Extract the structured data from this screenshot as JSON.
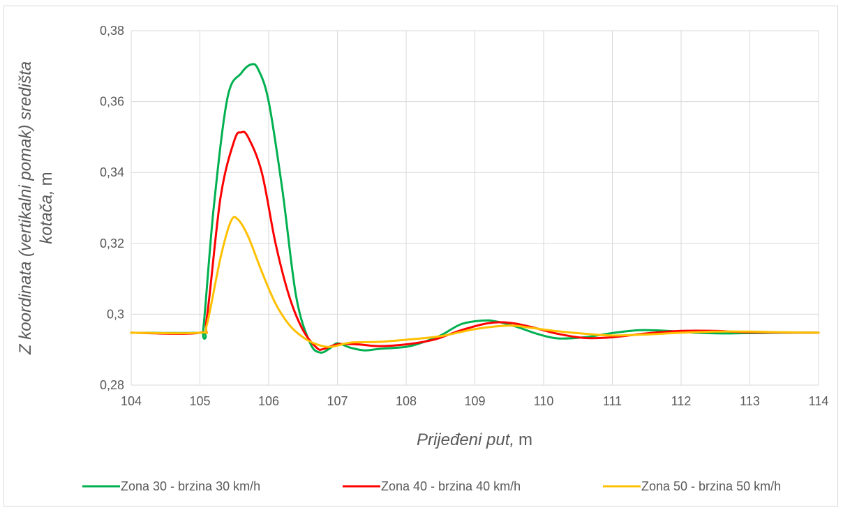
{
  "chart_data": {
    "type": "line",
    "title": "",
    "xlabel": "Prijeđeni put,",
    "xlabel_unit": "m",
    "ylabel": "Z koordinata (vertikalni pomak) središta kotača,",
    "ylabel_line1": "Z koordinata (vertikalni pomak) središta",
    "ylabel_line2": "kotača,",
    "ylabel_unit": "m",
    "xlim": [
      104,
      114
    ],
    "ylim": [
      0.28,
      0.38
    ],
    "x_ticks": [
      104,
      105,
      106,
      107,
      108,
      109,
      110,
      111,
      112,
      113,
      114
    ],
    "x_tick_labels": [
      "104",
      "105",
      "106",
      "107",
      "108",
      "109",
      "110",
      "111",
      "112",
      "113",
      "114"
    ],
    "y_ticks": [
      0.28,
      0.3,
      0.32,
      0.34,
      0.36,
      0.38
    ],
    "y_tick_labels": [
      "0,28",
      "0,3",
      "0,32",
      "0,34",
      "0,36",
      "0,38"
    ],
    "grid": true,
    "legend_position": "bottom",
    "series": [
      {
        "name": "Zona 30 - brzina 30 km/h",
        "color": "#00b050",
        "points": [
          [
            104,
            0.2948
          ],
          [
            105,
            0.2948
          ],
          [
            105.05,
            0.296
          ],
          [
            105.2,
            0.33
          ],
          [
            105.4,
            0.361
          ],
          [
            105.6,
            0.368
          ],
          [
            105.75,
            0.3705
          ],
          [
            105.85,
            0.369
          ],
          [
            106,
            0.36
          ],
          [
            106.2,
            0.335
          ],
          [
            106.4,
            0.305
          ],
          [
            106.6,
            0.292
          ],
          [
            106.75,
            0.2892
          ],
          [
            106.9,
            0.2905
          ],
          [
            107,
            0.2918
          ],
          [
            107.2,
            0.2905
          ],
          [
            107.4,
            0.2898
          ],
          [
            107.6,
            0.2902
          ],
          [
            108,
            0.2908
          ],
          [
            108.2,
            0.2918
          ],
          [
            108.5,
            0.294
          ],
          [
            108.8,
            0.2972
          ],
          [
            109.1,
            0.2982
          ],
          [
            109.3,
            0.298
          ],
          [
            109.6,
            0.2965
          ],
          [
            109.9,
            0.2945
          ],
          [
            110.2,
            0.2932
          ],
          [
            110.6,
            0.2935
          ],
          [
            111,
            0.2947
          ],
          [
            111.4,
            0.2955
          ],
          [
            111.8,
            0.2953
          ],
          [
            112.2,
            0.2948
          ],
          [
            112.6,
            0.2946
          ],
          [
            113,
            0.2947
          ],
          [
            113.5,
            0.2948
          ],
          [
            114,
            0.2948
          ]
        ]
      },
      {
        "name": "Zona 40 - brzina 40 km/h",
        "color": "#ff0000",
        "points": [
          [
            104,
            0.2948
          ],
          [
            105,
            0.2948
          ],
          [
            105.1,
            0.299
          ],
          [
            105.3,
            0.333
          ],
          [
            105.5,
            0.349
          ],
          [
            105.6,
            0.3513
          ],
          [
            105.7,
            0.35
          ],
          [
            105.9,
            0.34
          ],
          [
            106.1,
            0.32
          ],
          [
            106.3,
            0.305
          ],
          [
            106.5,
            0.2955
          ],
          [
            106.7,
            0.2905
          ],
          [
            106.8,
            0.2902
          ],
          [
            107,
            0.2915
          ],
          [
            107.3,
            0.2915
          ],
          [
            107.6,
            0.291
          ],
          [
            108,
            0.2915
          ],
          [
            108.4,
            0.2928
          ],
          [
            108.8,
            0.2955
          ],
          [
            109.2,
            0.2975
          ],
          [
            109.5,
            0.2976
          ],
          [
            109.8,
            0.2965
          ],
          [
            110.2,
            0.2945
          ],
          [
            110.6,
            0.2933
          ],
          [
            111,
            0.2935
          ],
          [
            111.5,
            0.2946
          ],
          [
            112,
            0.2953
          ],
          [
            112.5,
            0.2953
          ],
          [
            113,
            0.2949
          ],
          [
            114,
            0.2948
          ]
        ]
      },
      {
        "name": "Zona 50 - brzina 50 km/h",
        "color": "#ffc000",
        "points": [
          [
            104,
            0.2948
          ],
          [
            105,
            0.2948
          ],
          [
            105.1,
            0.297
          ],
          [
            105.3,
            0.316
          ],
          [
            105.45,
            0.3262
          ],
          [
            105.55,
            0.3268
          ],
          [
            105.7,
            0.322
          ],
          [
            105.9,
            0.312
          ],
          [
            106.1,
            0.303
          ],
          [
            106.3,
            0.297
          ],
          [
            106.5,
            0.2935
          ],
          [
            106.7,
            0.2915
          ],
          [
            106.9,
            0.2908
          ],
          [
            107.2,
            0.292
          ],
          [
            107.6,
            0.2922
          ],
          [
            108,
            0.2928
          ],
          [
            108.5,
            0.2938
          ],
          [
            109,
            0.2958
          ],
          [
            109.5,
            0.2968
          ],
          [
            109.8,
            0.2962
          ],
          [
            110.2,
            0.2952
          ],
          [
            110.6,
            0.2945
          ],
          [
            111,
            0.294
          ],
          [
            111.5,
            0.2943
          ],
          [
            112,
            0.2948
          ],
          [
            112.5,
            0.2951
          ],
          [
            113,
            0.2951
          ],
          [
            113.5,
            0.2949
          ],
          [
            114,
            0.2948
          ]
        ]
      }
    ]
  }
}
